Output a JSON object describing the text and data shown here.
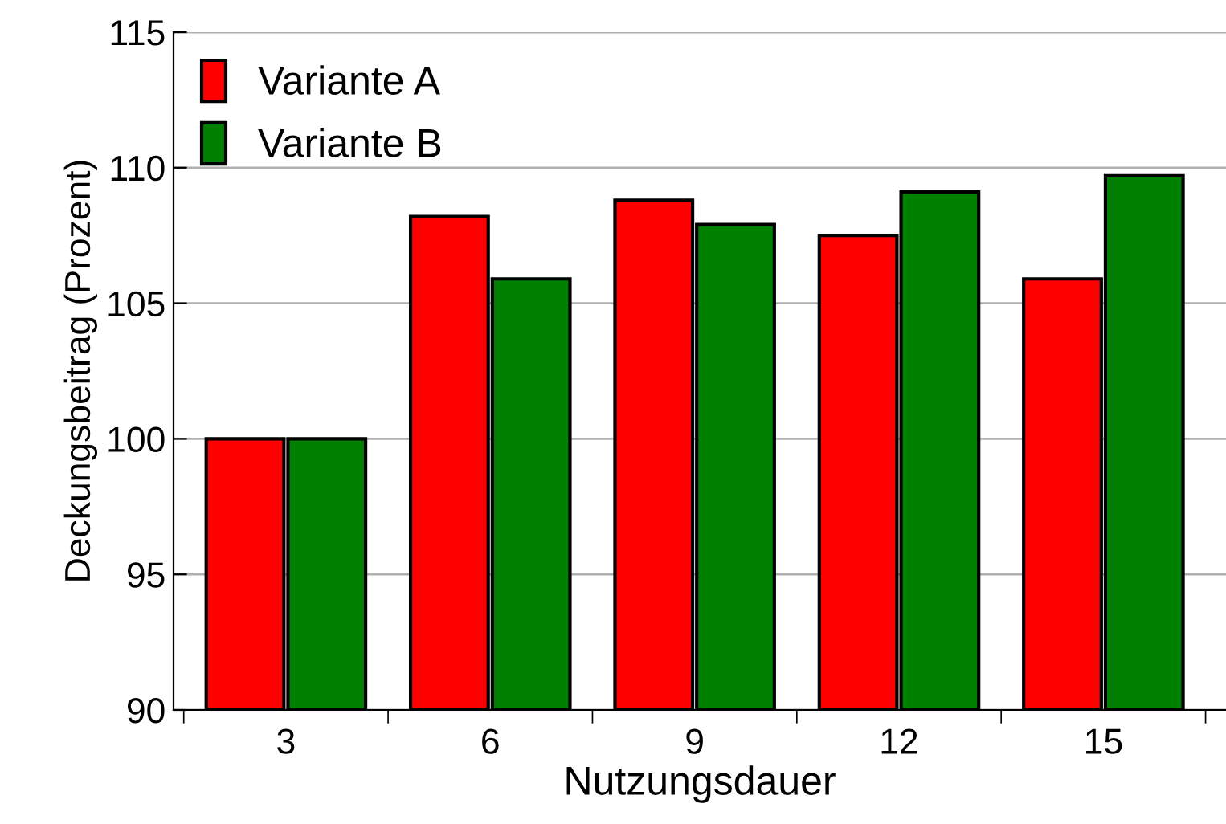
{
  "chart_data": {
    "type": "bar",
    "xlabel": "Nutzungsdauer",
    "ylabel": "Deckungsbeitrag (Prozent)",
    "categories": [
      "3",
      "6",
      "9",
      "12",
      "15"
    ],
    "series": [
      {
        "name": "Variante A",
        "color": "#ff0000",
        "values": [
          100,
          108.2,
          108.8,
          107.5,
          105.9
        ]
      },
      {
        "name": "Variante B",
        "color": "#008000",
        "values": [
          100,
          105.9,
          107.9,
          109.1,
          109.7
        ]
      }
    ],
    "ylim": [
      90,
      115
    ],
    "yticks": [
      90,
      95,
      100,
      105,
      110,
      115
    ],
    "grid": "y",
    "legend": "top left"
  }
}
